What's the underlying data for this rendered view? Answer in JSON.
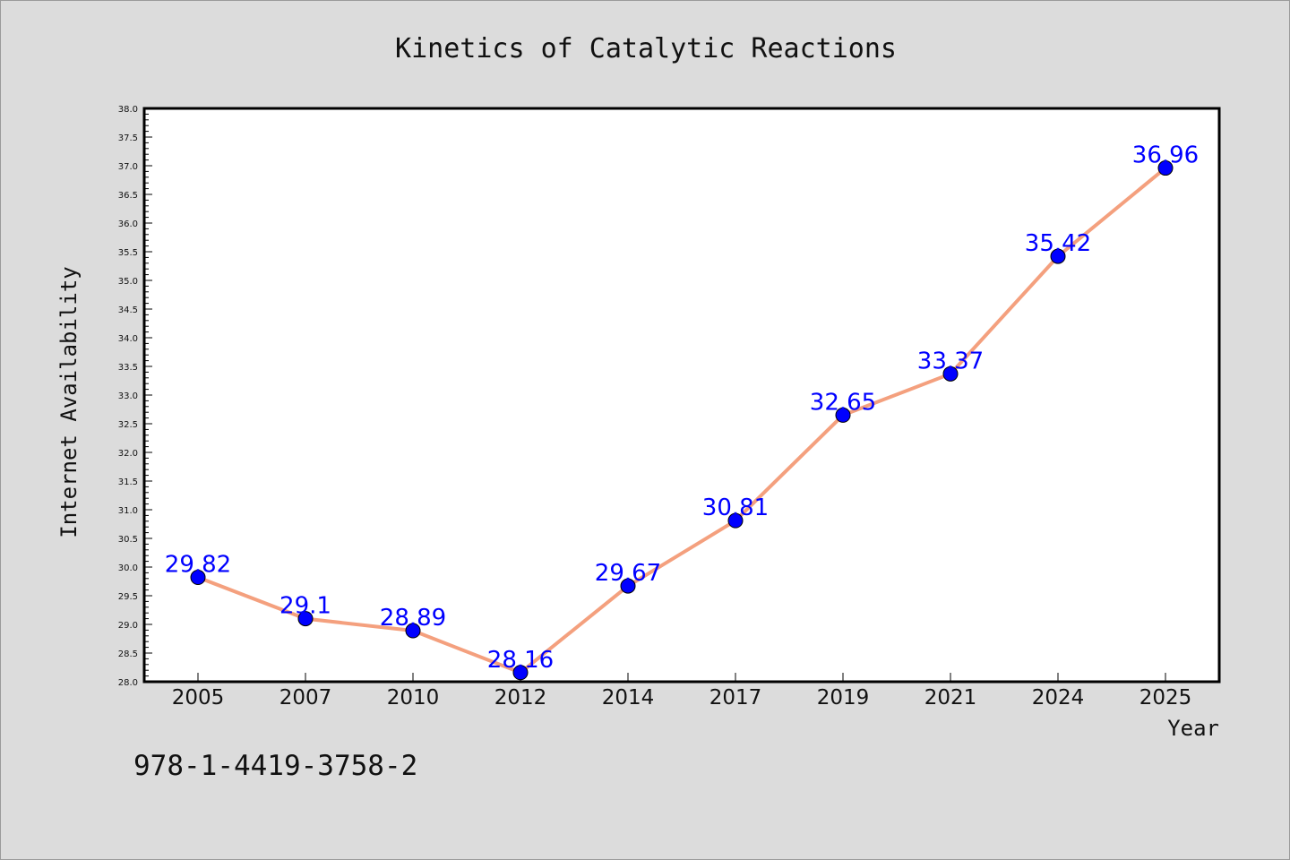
{
  "chart_data": {
    "type": "line",
    "title": "Kinetics of Catalytic Reactions",
    "xlabel": "Year",
    "ylabel": "Internet Availability",
    "categories": [
      "2005",
      "2007",
      "2010",
      "2012",
      "2014",
      "2017",
      "2019",
      "2021",
      "2024",
      "2025"
    ],
    "values": [
      29.82,
      29.1,
      28.89,
      28.16,
      29.67,
      30.81,
      32.65,
      33.37,
      35.42,
      36.96
    ],
    "data_labels": [
      "29.82",
      "29.1",
      "28.89",
      "28.16",
      "29.67",
      "30.81",
      "32.65",
      "33.37",
      "35.42",
      "36.96"
    ],
    "ylim": [
      28.0,
      38.0
    ],
    "yticks": [
      "28.0",
      "28.5",
      "29.0",
      "29.5",
      "30.0",
      "30.5",
      "31.0",
      "31.5",
      "32.0",
      "32.5",
      "33.0",
      "33.5",
      "34.0",
      "34.5",
      "35.0",
      "35.5",
      "36.0",
      "36.5",
      "37.0",
      "37.5",
      "38.0"
    ],
    "grid": false,
    "legend": "none",
    "line_color": "#f4a07e",
    "marker_color": "#0000ff",
    "label_color": "#0000ff",
    "background": "#dcdcdc",
    "plot_background": "#ffffff"
  },
  "annotation": "978-1-4419-3758-2"
}
